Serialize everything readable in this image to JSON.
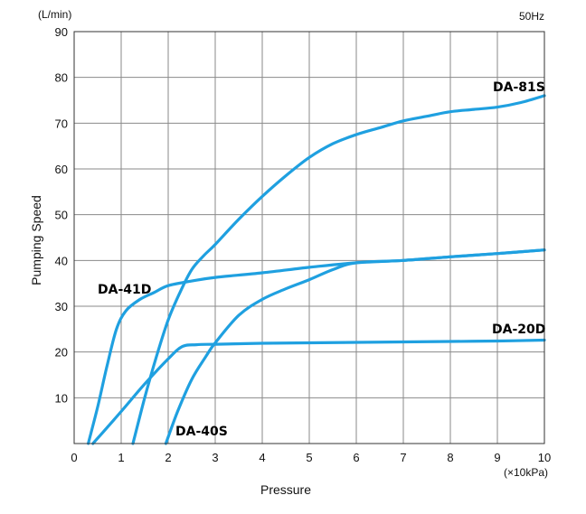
{
  "chart_data": {
    "type": "line",
    "xlabel": "Pressure",
    "ylabel": "Pumping Speed",
    "x_unit": "(×10kPa)",
    "y_unit": "(L/min)",
    "frequency": "50Hz",
    "xlim": [
      0,
      10
    ],
    "ylim": [
      0,
      90
    ],
    "x_ticks": [
      "0",
      "1",
      "2",
      "3",
      "4",
      "5",
      "6",
      "7",
      "8",
      "9",
      "10"
    ],
    "y_ticks": [
      "10",
      "20",
      "30",
      "40",
      "50",
      "60",
      "70",
      "80",
      "90"
    ],
    "grid": true,
    "line_color": "#1fa0e0",
    "series": [
      {
        "name": "DA-81S",
        "x": [
          1.25,
          1.5,
          1.75,
          2.0,
          2.25,
          2.5,
          2.75,
          3.0,
          3.5,
          4.0,
          4.5,
          5.0,
          5.5,
          6.0,
          6.5,
          7.0,
          7.5,
          8.0,
          8.5,
          9.0,
          9.5,
          10.0
        ],
        "y": [
          0,
          10,
          19,
          27,
          33,
          38,
          41,
          43.5,
          49,
          54,
          58.5,
          62.5,
          65.5,
          67.5,
          69,
          70.5,
          71.5,
          72.5,
          73,
          73.5,
          74.5,
          76
        ]
      },
      {
        "name": "DA-41D",
        "x": [
          0.3,
          0.5,
          0.7,
          0.9,
          1.1,
          1.4,
          1.7,
          2.0,
          2.5,
          3.0,
          4.0,
          5.0,
          6.0,
          7.0,
          8.0,
          9.0,
          10.0
        ],
        "y": [
          0,
          8,
          17,
          25,
          29,
          31.5,
          33,
          34.5,
          35.5,
          36.3,
          37.3,
          38.5,
          39.5,
          40,
          40.8,
          41.5,
          42.3
        ]
      },
      {
        "name": "DA-20D",
        "x": [
          0.4,
          1.0,
          1.5,
          2.0,
          2.3,
          2.6,
          3.0,
          4.0,
          5.0,
          6.0,
          7.0,
          8.0,
          9.0,
          10.0
        ],
        "y": [
          0,
          7,
          13,
          18.5,
          21.2,
          21.6,
          21.7,
          21.9,
          22,
          22.1,
          22.2,
          22.3,
          22.4,
          22.6
        ]
      },
      {
        "name": "DA-40S",
        "x": [
          1.95,
          2.2,
          2.5,
          2.8,
          3.0,
          3.5,
          4.0,
          4.5,
          5.0,
          5.5,
          6.0,
          7.0,
          8.0,
          9.0,
          10.0
        ],
        "y": [
          0,
          7,
          14,
          19,
          22,
          28,
          31.5,
          33.8,
          35.8,
          38,
          39.5,
          40,
          40.8,
          41.5,
          42.3
        ]
      }
    ]
  }
}
